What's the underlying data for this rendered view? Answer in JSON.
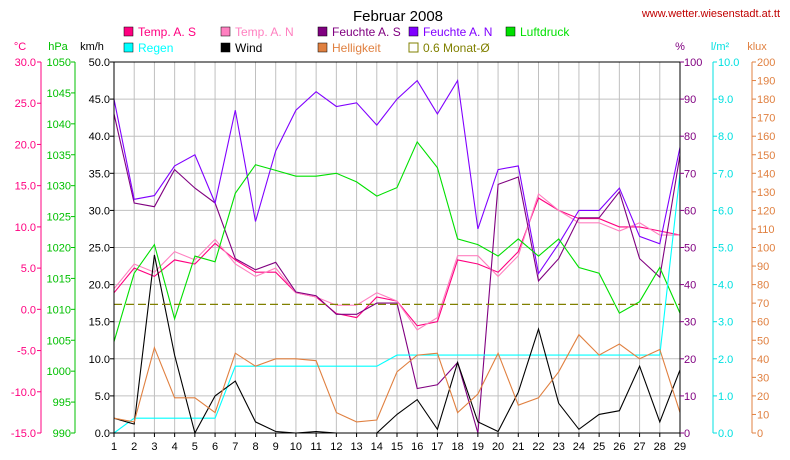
{
  "header": {
    "title": "Februar 2008",
    "url": "www.wetter.wiesenstadt.at.tt"
  },
  "legend": [
    {
      "label": "Temp. A. S",
      "color": "#ff0080",
      "kind": "fill"
    },
    {
      "label": "Temp. A. N",
      "color": "#ff80c0",
      "kind": "fill"
    },
    {
      "label": "Feuchte A. S",
      "color": "#800080",
      "kind": "fill"
    },
    {
      "label": "Feuchte A. N",
      "color": "#8000ff",
      "kind": "fill"
    },
    {
      "label": "Luftdruck",
      "color": "#00e000",
      "kind": "fill"
    },
    {
      "label": "Regen",
      "color": "#00ffff",
      "kind": "fill"
    },
    {
      "label": "Wind",
      "color": "#000000",
      "kind": "fill"
    },
    {
      "label": "Helligkeit",
      "color": "#e08040",
      "kind": "fill"
    },
    {
      "label": "0.6 Monat-Ø",
      "color": "#808000",
      "kind": "outline"
    }
  ],
  "axes": {
    "temp": {
      "unit": "°C",
      "color": "#ff0080",
      "ticks": [
        "30.0",
        "25.0",
        "20.0",
        "15.0",
        "10.0",
        "5.0",
        "0.0",
        "-5.0",
        "-10.0",
        "-15.0"
      ]
    },
    "pressure": {
      "unit": "hPa",
      "color": "#00c000",
      "ticks": [
        "1050",
        "1045",
        "1040",
        "1035",
        "1030",
        "1025",
        "1020",
        "1015",
        "1010",
        "1005",
        "1000",
        "995",
        "990"
      ]
    },
    "wind": {
      "unit": "km/h",
      "color": "#000000",
      "ticks": [
        "50.0",
        "45.0",
        "40.0",
        "35.0",
        "30.0",
        "25.0",
        "20.0",
        "15.0",
        "10.0",
        "5.0",
        "0.0"
      ]
    },
    "humidity": {
      "unit": "%",
      "color": "#800080",
      "ticks": [
        "100",
        "90",
        "80",
        "70",
        "60",
        "50",
        "40",
        "30",
        "20",
        "10",
        "0"
      ]
    },
    "rain": {
      "unit": "l/m²",
      "color": "#00e0e0",
      "ticks": [
        "10.0",
        "9.0",
        "8.0",
        "7.0",
        "6.0",
        "5.0",
        "4.0",
        "3.0",
        "2.0",
        "1.0",
        "0.0"
      ]
    },
    "lux": {
      "unit": "klux",
      "color": "#e08040",
      "ticks": [
        "200",
        "190",
        "180",
        "170",
        "160",
        "150",
        "140",
        "130",
        "120",
        "110",
        "100",
        "90",
        "80",
        "70",
        "60",
        "50",
        "40",
        "30",
        "20",
        "10",
        "0"
      ]
    },
    "x_ticks": [
      "1",
      "2",
      "3",
      "4",
      "5",
      "6",
      "7",
      "8",
      "9",
      "10",
      "11",
      "12",
      "13",
      "14",
      "15",
      "16",
      "17",
      "18",
      "19",
      "20",
      "21",
      "22",
      "23",
      "24",
      "25",
      "26",
      "27",
      "28",
      "29"
    ]
  },
  "chart_data": {
    "type": "line",
    "title": "Februar 2008",
    "x": [
      1,
      2,
      3,
      4,
      5,
      6,
      7,
      8,
      9,
      10,
      11,
      12,
      13,
      14,
      15,
      16,
      17,
      18,
      19,
      20,
      21,
      22,
      23,
      24,
      25,
      26,
      27,
      28,
      29
    ],
    "grid": true,
    "axes_ranges": {
      "wind_kmh": [
        0,
        50
      ],
      "temp_c": [
        -15,
        30
      ],
      "pressure_hpa": [
        990,
        1055
      ],
      "humidity_pct": [
        0,
        100
      ],
      "rain_lm2": [
        0,
        10
      ],
      "lux_klux": [
        0,
        200
      ]
    },
    "series": [
      {
        "name": "Temp. A. S",
        "axis": "temp_c",
        "color": "#ff0080",
        "values": [
          2.0,
          5.0,
          4.0,
          6.0,
          5.5,
          8.0,
          6.0,
          4.5,
          4.5,
          2.0,
          1.5,
          -0.5,
          -1.0,
          1.5,
          1.0,
          -2.0,
          -1.5,
          6.0,
          5.5,
          4.5,
          7.0,
          13.5,
          12.0,
          11.0,
          11.0,
          10.0,
          10.0,
          9.5,
          9.0
        ]
      },
      {
        "name": "Temp. A. N",
        "axis": "temp_c",
        "color": "#ff80c0",
        "values": [
          2.5,
          5.5,
          4.5,
          7.0,
          6.0,
          8.5,
          5.5,
          4.0,
          5.0,
          2.0,
          1.5,
          0.5,
          0.5,
          2.0,
          1.0,
          -2.5,
          -1.0,
          6.5,
          6.5,
          4.0,
          6.5,
          14.0,
          12.0,
          10.5,
          10.5,
          9.5,
          10.5,
          9.0,
          9.0
        ]
      },
      {
        "name": "Feuchte A. S",
        "axis": "humidity_pct",
        "color": "#800080",
        "values": [
          86,
          62,
          61,
          71,
          66,
          62,
          47,
          44,
          46,
          38,
          37,
          32,
          32,
          35,
          35,
          12,
          13,
          19,
          0,
          67,
          69,
          41,
          47,
          58,
          58,
          65,
          47,
          42,
          75
        ]
      },
      {
        "name": "Feuchte A. N",
        "axis": "humidity_pct",
        "color": "#8000ff",
        "values": [
          90,
          63,
          64,
          72,
          75,
          62,
          87,
          57,
          76,
          87,
          92,
          88,
          89,
          83,
          90,
          95,
          86,
          95,
          55,
          71,
          72,
          43,
          51,
          60,
          60,
          66,
          53,
          51,
          77
        ]
      },
      {
        "name": "Luftdruck",
        "axis": "pressure_hpa",
        "color": "#00e000",
        "values": [
          1006,
          1018,
          1023,
          1010,
          1021,
          1020,
          1032,
          1037,
          1036,
          1035,
          1035,
          1035.5,
          1034,
          1031.5,
          1033,
          1041,
          1036.5,
          1024,
          1023,
          1021,
          1024,
          1021,
          1024,
          1019,
          1018,
          1011,
          1013,
          1019,
          1011
        ]
      },
      {
        "name": "Regen",
        "axis": "rain_lm2",
        "color": "#00ffff",
        "values": [
          0,
          0.4,
          0.4,
          0.4,
          0.4,
          0.4,
          1.8,
          1.8,
          1.8,
          1.8,
          1.8,
          1.8,
          1.8,
          1.8,
          2.1,
          2.1,
          2.1,
          2.1,
          2.1,
          2.1,
          2.1,
          2.1,
          2.1,
          2.1,
          2.1,
          2.1,
          2.1,
          2.1,
          7.0
        ]
      },
      {
        "name": "Wind",
        "axis": "wind_kmh",
        "color": "#000000",
        "values": [
          2.0,
          1.2,
          24.0,
          10.5,
          0.0,
          5.0,
          7.0,
          1.5,
          0.2,
          0.0,
          0.2,
          0.0,
          0.0,
          0.0,
          2.5,
          4.5,
          0.5,
          9.5,
          1.5,
          0.2,
          5.5,
          14.0,
          4.0,
          0.5,
          2.5,
          3.0,
          9.0,
          1.5,
          8.5
        ]
      },
      {
        "name": "Helligkeit",
        "axis": "lux_klux",
        "color": "#e08040",
        "values": [
          8,
          6,
          46,
          19,
          19,
          11,
          43,
          36,
          40,
          40,
          39,
          11,
          6,
          7,
          33,
          42,
          43,
          11,
          21,
          43,
          15,
          19,
          33,
          53,
          42,
          48,
          40,
          45,
          11
        ]
      },
      {
        "name": "0.6 Monat-Ø",
        "axis": "temp_c",
        "color": "#808000",
        "style": "dashed",
        "values": [
          0.6,
          0.6,
          0.6,
          0.6,
          0.6,
          0.6,
          0.6,
          0.6,
          0.6,
          0.6,
          0.6,
          0.6,
          0.6,
          0.6,
          0.6,
          0.6,
          0.6,
          0.6,
          0.6,
          0.6,
          0.6,
          0.6,
          0.6,
          0.6,
          0.6,
          0.6,
          0.6,
          0.6,
          0.6
        ]
      }
    ]
  }
}
